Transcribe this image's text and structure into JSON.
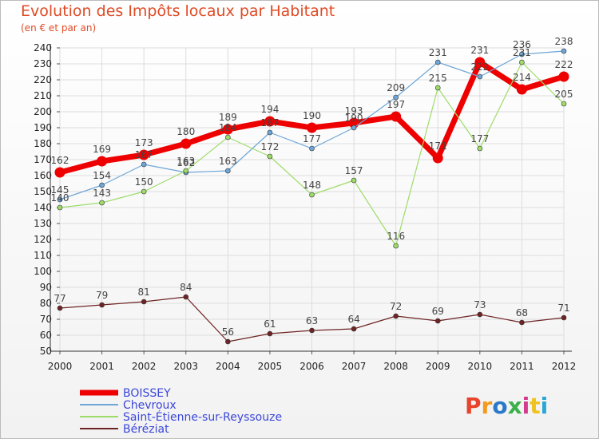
{
  "header": {
    "title": "Evolution des Impôts locaux par Habitant",
    "subtitle": "(en € et par an)"
  },
  "logo": {
    "text": "Proxiti",
    "colors": [
      "#e8442c",
      "#f39a1e",
      "#2a78c8",
      "#3bb04a",
      "#d33b8c",
      "#f0c21d",
      "#2aa6d6"
    ]
  },
  "chart_data": {
    "type": "line",
    "x": [
      "2000",
      "2001",
      "2002",
      "2003",
      "2004",
      "2005",
      "2006",
      "2007",
      "2008",
      "2009",
      "2010",
      "2011",
      "2012"
    ],
    "ylim": [
      50,
      240
    ],
    "yticks": [
      50,
      60,
      70,
      80,
      90,
      100,
      110,
      120,
      130,
      140,
      150,
      160,
      170,
      180,
      190,
      200,
      210,
      220,
      230,
      240
    ],
    "grid": true,
    "legend_position": "bottom-left",
    "series": [
      {
        "name": "BOISSEY",
        "color": "#ee0000",
        "width": 7,
        "values": [
          162,
          169,
          173,
          180,
          189,
          194,
          190,
          193,
          197,
          171,
          231,
          214,
          222
        ]
      },
      {
        "name": "Chevroux",
        "color": "#6ea6d8",
        "width": 1.2,
        "values": [
          145,
          154,
          167,
          162,
          163,
          187,
          177,
          190,
          209,
          231,
          222,
          236,
          238
        ]
      },
      {
        "name": "Saint-Étienne-sur-Reyssouze",
        "color": "#9edc6a",
        "width": 1.2,
        "values": [
          140,
          143,
          150,
          163,
          184,
          172,
          148,
          157,
          116,
          215,
          177,
          231,
          205
        ]
      },
      {
        "name": "Béréziat",
        "color": "#6e2424",
        "width": 1.2,
        "values": [
          77,
          79,
          81,
          84,
          56,
          61,
          63,
          64,
          72,
          69,
          73,
          68,
          71
        ]
      }
    ]
  }
}
